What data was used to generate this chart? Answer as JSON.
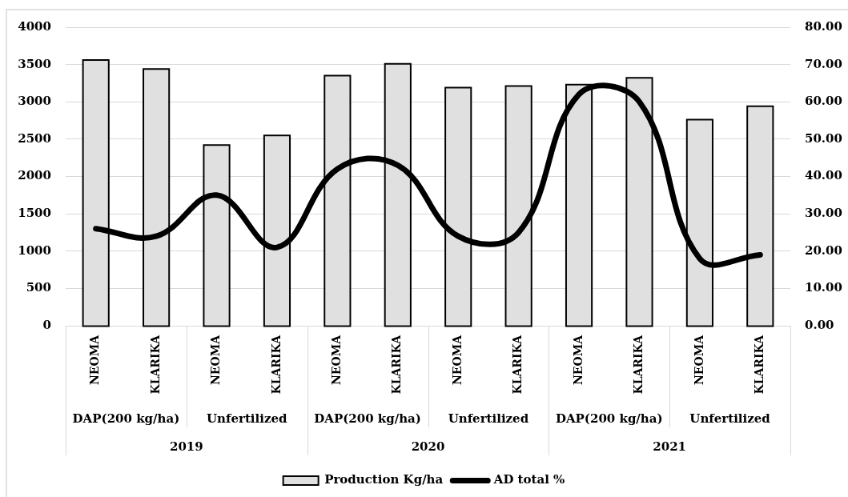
{
  "chart_data": {
    "type": "bar",
    "categories": [
      "NEOMA",
      "KLARIKA",
      "NEOMA",
      "KLARIKA",
      "NEOMA",
      "KLARIKA",
      "NEOMA",
      "KLARIKA",
      "NEOMA",
      "KLARIKA",
      "NEOMA",
      "KLARIKA"
    ],
    "series": [
      {
        "name": "Production Kg/ha",
        "color": "#e0e0e0",
        "values": [
          3550,
          3430,
          2410,
          2540,
          3340,
          3500,
          3180,
          3200,
          3220,
          3310,
          2750,
          2930
        ]
      },
      {
        "name": "AD total %",
        "type": "line",
        "color": "#000000",
        "axis": "y2",
        "values": [
          26,
          24,
          35,
          21,
          42,
          43,
          24,
          25,
          62,
          60,
          18,
          19
        ]
      }
    ],
    "ylim": [
      0,
      4000
    ],
    "yticks": [
      0,
      500,
      1000,
      1500,
      2000,
      2500,
      3000,
      3500,
      4000
    ],
    "y2lim": [
      0,
      80
    ],
    "y2ticks": [
      {
        "value": 0,
        "label": "0.00"
      },
      {
        "value": 10,
        "label": "10.00"
      },
      {
        "value": 20,
        "label": "20.00"
      },
      {
        "value": 30,
        "label": "30.00"
      },
      {
        "value": 40,
        "label": "40.00"
      },
      {
        "value": 50,
        "label": "50.00"
      },
      {
        "value": 60,
        "label": "60.00"
      },
      {
        "value": 70,
        "label": "70.00"
      },
      {
        "value": 80,
        "label": "80.00"
      }
    ],
    "grid": "y",
    "legend": "bottom",
    "annotations": [
      "DAP(200 kg/ha)",
      "Unfertilized",
      "DAP(200 kg/ha)",
      "Unfertilized",
      "DAP(200 kg/ha)",
      "Unfertilized",
      "2019",
      "2020",
      "2021"
    ]
  }
}
